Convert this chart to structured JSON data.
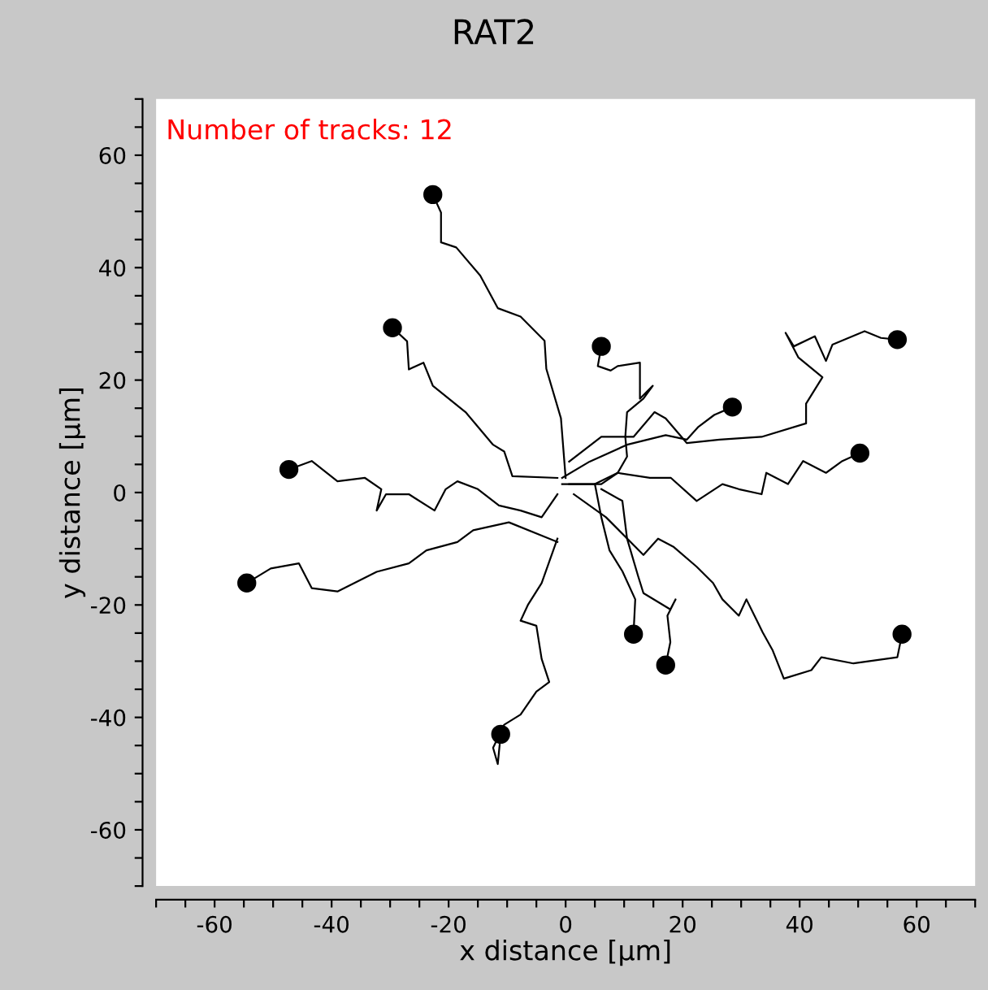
{
  "chart_data": {
    "type": "line",
    "title": "RAT2",
    "xlabel": "x distance [µm]",
    "ylabel": "y distance [µm]",
    "annotations": [
      "Number of tracks: 12"
    ],
    "xlim": [
      -70,
      70
    ],
    "ylim": [
      -70,
      70
    ],
    "xticks": [
      {
        "value": -70,
        "label": null
      },
      {
        "value": -65,
        "label": null
      },
      -60,
      {
        "value": -55,
        "label": null
      },
      {
        "value": -50,
        "label": null
      },
      {
        "value": -45,
        "label": null
      },
      -40,
      {
        "value": -35,
        "label": null
      },
      {
        "value": -30,
        "label": null
      },
      {
        "value": -25,
        "label": null
      },
      -20,
      {
        "value": -15,
        "label": null
      },
      {
        "value": -10,
        "label": null
      },
      {
        "value": -5,
        "label": null
      },
      0,
      {
        "value": 5,
        "label": null
      },
      {
        "value": 10,
        "label": null
      },
      {
        "value": 15,
        "label": null
      },
      20,
      {
        "value": 25,
        "label": null
      },
      {
        "value": 30,
        "label": null
      },
      {
        "value": 35,
        "label": null
      },
      40,
      {
        "value": 45,
        "label": null
      },
      {
        "value": 50,
        "label": null
      },
      {
        "value": 55,
        "label": null
      },
      60,
      {
        "value": 65,
        "label": null
      },
      {
        "value": 70,
        "label": null
      }
    ],
    "yticks": [
      {
        "value": -70,
        "label": null
      },
      {
        "value": -65,
        "label": null
      },
      -60,
      {
        "value": -55,
        "label": null
      },
      {
        "value": -50,
        "label": null
      },
      {
        "value": -45,
        "label": null
      },
      -40,
      {
        "value": -35,
        "label": null
      },
      {
        "value": -30,
        "label": null
      },
      {
        "value": -25,
        "label": null
      },
      -20,
      {
        "value": -15,
        "label": null
      },
      {
        "value": -10,
        "label": null
      },
      {
        "value": -5,
        "label": null
      },
      0,
      {
        "value": 5,
        "label": null
      },
      {
        "value": 10,
        "label": null
      },
      {
        "value": 15,
        "label": null
      },
      20,
      {
        "value": 25,
        "label": null
      },
      {
        "value": 30,
        "label": null
      },
      {
        "value": 35,
        "label": null
      },
      40,
      {
        "value": 45,
        "label": null
      },
      {
        "value": 50,
        "label": null
      },
      {
        "value": 55,
        "label": null
      },
      60,
      {
        "value": 65,
        "label": null
      },
      {
        "value": 70,
        "label": null
      }
    ],
    "series": [
      {
        "color": "#000000",
        "x": [
          0,
          -0.8,
          -3.3,
          -3.6,
          -7.7,
          -11.6,
          -14.6,
          -18.7,
          -21.3,
          -21.3,
          -22.7
        ],
        "values": [
          2.6,
          13.2,
          22,
          27,
          31.3,
          32.8,
          38.6,
          43.6,
          44.5,
          49.8,
          53
        ]
      },
      {
        "color": "#000000",
        "x": [
          -1.4,
          -9.1,
          -10.5,
          -12.4,
          -17.1,
          -22.7,
          -24.3,
          -26.8,
          -27.1,
          -29.6
        ],
        "values": [
          2.6,
          2.9,
          7.3,
          8.5,
          14.3,
          19,
          23.1,
          21.9,
          26.9,
          29.3
        ]
      },
      {
        "color": "#000000",
        "x": [
          0.6,
          6.1,
          8.9,
          10.5,
          10.2,
          10.5,
          13.3,
          14.9,
          12.7,
          12.7,
          8.9,
          7.7,
          5.5,
          6.1
        ],
        "values": [
          1.5,
          1.5,
          3.5,
          6.4,
          9.9,
          14.3,
          16.7,
          19,
          16.7,
          23.1,
          22.5,
          21.7,
          22.5,
          26
        ]
      },
      {
        "color": "#000000",
        "x": [
          0.6,
          6.1,
          11.6,
          15.2,
          17.1,
          20.7,
          26.3,
          33.5,
          41.1,
          41.1,
          43.9,
          39.8,
          37.6,
          39,
          42.6,
          44.5,
          45.6,
          51.1,
          53.9,
          56.7
        ],
        "values": [
          5.5,
          9.9,
          9.9,
          14.3,
          13.2,
          8.8,
          9.4,
          9.9,
          12.3,
          15.8,
          20.5,
          24,
          28.4,
          26,
          27.8,
          23.4,
          26.3,
          28.7,
          27.5,
          27.2
        ]
      },
      {
        "color": "#000000",
        "x": [
          -0.6,
          4.1,
          10.5,
          17.1,
          20.7,
          22.7,
          25.4,
          28.5
        ],
        "values": [
          2.6,
          5.5,
          8.5,
          10.2,
          9.4,
          11.7,
          13.8,
          15.2
        ]
      },
      {
        "color": "#000000",
        "x": [
          -0.6,
          5,
          8.9,
          14.4,
          18,
          22.4,
          26.8,
          29.6,
          33.5,
          34.3,
          38,
          40.6,
          44.5,
          47.3,
          50.3
        ],
        "values": [
          1.5,
          1.5,
          3.5,
          2.6,
          2.6,
          -1.5,
          1.5,
          0.6,
          -0.3,
          3.5,
          1.5,
          5.6,
          3.5,
          5.6,
          7
        ]
      },
      {
        "color": "#000000",
        "x": [
          -1.4,
          -4.1,
          -7.7,
          -11.4,
          -15,
          -18.5,
          -20.5,
          -22.4,
          -26.8,
          -30.7,
          -32.3,
          -31.5,
          -34.3,
          -39,
          -43.4,
          -47.3
        ],
        "values": [
          -0.3,
          -4.4,
          -3.2,
          -2.3,
          0.6,
          2,
          0.6,
          -3.2,
          -0.3,
          -0.3,
          -3.2,
          0.6,
          2.6,
          2,
          5.6,
          4.1
        ]
      },
      {
        "color": "#000000",
        "x": [
          -1.4,
          -9.7,
          -15.8,
          -18.5,
          -23.8,
          -26.8,
          -32.3,
          -39,
          -43.4,
          -45.6,
          -50.4,
          -54.5
        ],
        "values": [
          -8.8,
          -5.3,
          -6.7,
          -8.8,
          -10.3,
          -12.6,
          -14.1,
          -17.6,
          -17,
          -12.6,
          -13.5,
          -16.1
        ]
      },
      {
        "color": "#000000",
        "x": [
          1.4,
          6.9,
          13.3,
          15.8,
          18.5,
          22.4,
          25.2,
          26.8,
          29.6,
          30.9,
          33.7,
          35.4,
          37.3,
          42,
          43.7,
          49.2,
          56.7,
          57.5
        ],
        "values": [
          -0.3,
          -4.4,
          -11.1,
          -8.2,
          -9.7,
          -13.2,
          -16.1,
          -19,
          -21.9,
          -19,
          -24.9,
          -28.1,
          -33.1,
          -31.6,
          -29.3,
          -30.4,
          -29.3,
          -25.2
        ]
      },
      {
        "color": "#000000",
        "x": [
          5,
          6.1,
          7.5,
          9.7,
          11.9,
          11.6
        ],
        "values": [
          1.5,
          -4.4,
          -10.3,
          -14,
          -19,
          -25.2
        ]
      },
      {
        "color": "#000000",
        "x": [
          6.1,
          9.7,
          10.5,
          12.4,
          13.3,
          17.9,
          18.8,
          17.4,
          17.9,
          17.1
        ],
        "values": [
          0.6,
          -1.5,
          -8.2,
          -14.9,
          -17.9,
          -20.8,
          -19,
          -21.9,
          -26.6,
          -30.7
        ]
      },
      {
        "color": "#000000",
        "x": [
          -1.4,
          -4.1,
          -6.4,
          -7.7,
          -5,
          -4.1,
          -2.8,
          -5,
          -7.7,
          -10.5,
          -12.4,
          -11.6,
          -11.1
        ],
        "values": [
          -8.2,
          -16.1,
          -19.9,
          -22.8,
          -23.7,
          -29.6,
          -33.7,
          -35.4,
          -39.5,
          -41.3,
          -45.4,
          -48.3,
          -43
        ]
      },
      {
        "type": "scatter",
        "color": "#000000",
        "x": [
          -22.7,
          -29.6,
          6.1,
          56.7,
          28.5,
          50.3,
          -47.3,
          -54.5,
          57.5,
          11.6,
          17.1,
          -11.1
        ],
        "values": [
          53,
          29.3,
          26,
          27.2,
          15.2,
          7,
          4.1,
          -16.1,
          -25.2,
          -25.2,
          -30.7,
          -43
        ]
      }
    ]
  }
}
